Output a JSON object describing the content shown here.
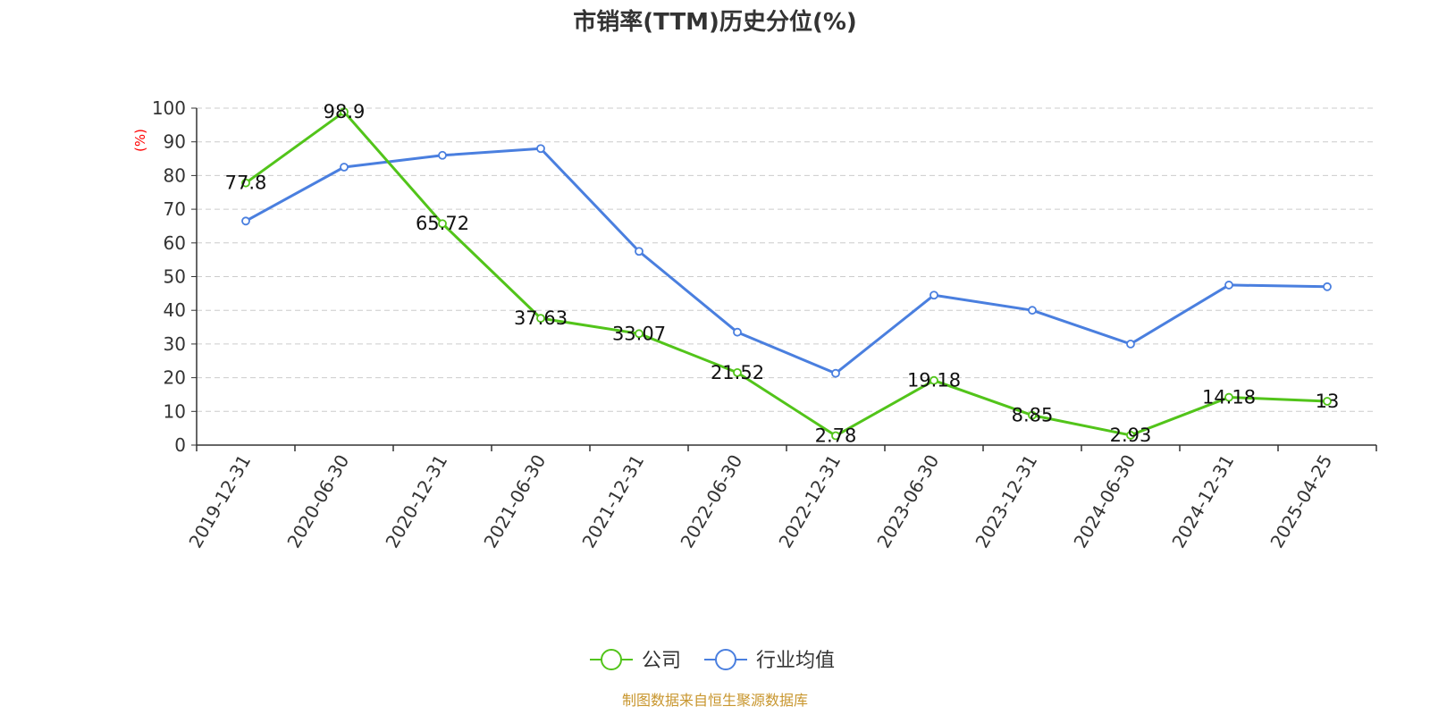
{
  "colors": {
    "company": "#52c41a",
    "industry": "#4a7fdf",
    "source": "#c8962e",
    "unit": "#ff0000",
    "grid": "#cccccc",
    "axis": "#333333"
  },
  "footer": {
    "source_text": "制图数据来自恒生聚源数据库"
  },
  "chart_data": {
    "type": "line",
    "title": "市销率(TTM)历史分位(%)",
    "ylabel": "(%)",
    "xlabel": "",
    "ylim": [
      0,
      100
    ],
    "yticks": [
      0,
      10,
      20,
      30,
      40,
      50,
      60,
      70,
      80,
      90,
      100
    ],
    "grid": true,
    "legend_position": "bottom-center",
    "categories": [
      "2019-12-31",
      "2020-06-30",
      "2020-12-31",
      "2021-06-30",
      "2021-12-31",
      "2022-06-30",
      "2022-12-31",
      "2023-06-30",
      "2023-12-31",
      "2024-06-30",
      "2024-12-31",
      "2025-04-25"
    ],
    "series": [
      {
        "name": "公司",
        "color": "#52c41a",
        "values": [
          77.8,
          98.9,
          65.72,
          37.63,
          33.07,
          21.52,
          2.78,
          19.18,
          8.85,
          2.93,
          14.18,
          13
        ],
        "labels": [
          "77.8",
          "98.9",
          "65.72",
          "37.63",
          "33.07",
          "21.52",
          "2.78",
          "19.18",
          "8.85",
          "2.93",
          "14.18",
          "13"
        ]
      },
      {
        "name": "行业均值",
        "color": "#4a7fdf",
        "values": [
          66.5,
          82.5,
          86,
          88,
          57.5,
          33.5,
          21.3,
          44.5,
          40,
          30,
          47.5,
          47
        ]
      }
    ]
  }
}
